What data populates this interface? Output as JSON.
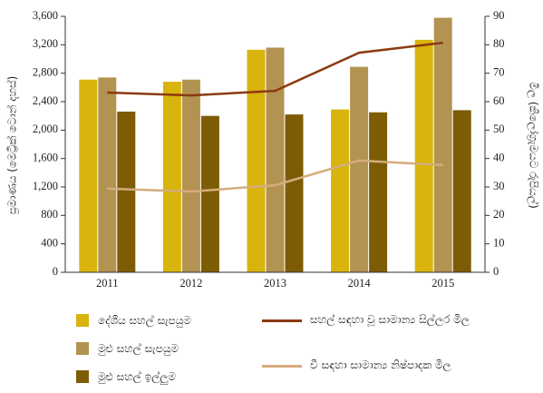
{
  "chart_data": {
    "type": "bar",
    "categories": [
      "2011",
      "2012",
      "2013",
      "2014",
      "2015"
    ],
    "y_label": "ප්‍රමාණය (මෙට්‍රික් ටොන් දහස්)",
    "y2_label": "මිල (කිලෝග්‍රැමයට රුපියල්)",
    "series": [
      {
        "name": "දේශීය සහල් සැපයුම",
        "color": "#d8b40c",
        "type": "bar",
        "values": [
          2710,
          2680,
          3130,
          2290,
          3270
        ]
      },
      {
        "name": "මුළු සහල් සැපයුම",
        "color": "#b39352",
        "type": "bar",
        "values": [
          2740,
          2710,
          3160,
          2890,
          3580
        ]
      },
      {
        "name": "මුළු සහල් ඉල්ලුම",
        "color": "#7d5c05",
        "type": "bar",
        "values": [
          2260,
          2200,
          2220,
          2250,
          2280
        ]
      },
      {
        "name": "සහල් සඳහා වූ සාමාන්‍ය සිල්ලර මිල",
        "color": "#8b3a10",
        "type": "line",
        "axis": "y2",
        "values": [
          63.2,
          62.2,
          63.8,
          77.2,
          80.7
        ]
      },
      {
        "name": "වී සඳහා සාමාන්‍ය නිෂ්පාදක මිල",
        "color": "#d6ac7c",
        "type": "line",
        "axis": "y2",
        "values": [
          29.4,
          28.4,
          30.6,
          39.3,
          37.7
        ]
      }
    ],
    "ylim": [
      0,
      3600
    ],
    "yticks": [
      0,
      400,
      800,
      {
        "value": 1200,
        "label": "1,200"
      },
      {
        "value": 1600,
        "label": "1,600"
      },
      {
        "value": 2000,
        "label": "2,000"
      },
      {
        "value": 2400,
        "label": "2,400"
      },
      {
        "value": 2800,
        "label": "2,800"
      },
      {
        "value": 3200,
        "label": "3,200"
      },
      {
        "value": 3600,
        "label": "3,600"
      }
    ],
    "y2lim": [
      0,
      90
    ],
    "y2ticks": [
      0,
      10,
      20,
      30,
      40,
      50,
      60,
      70,
      80,
      90
    ]
  }
}
